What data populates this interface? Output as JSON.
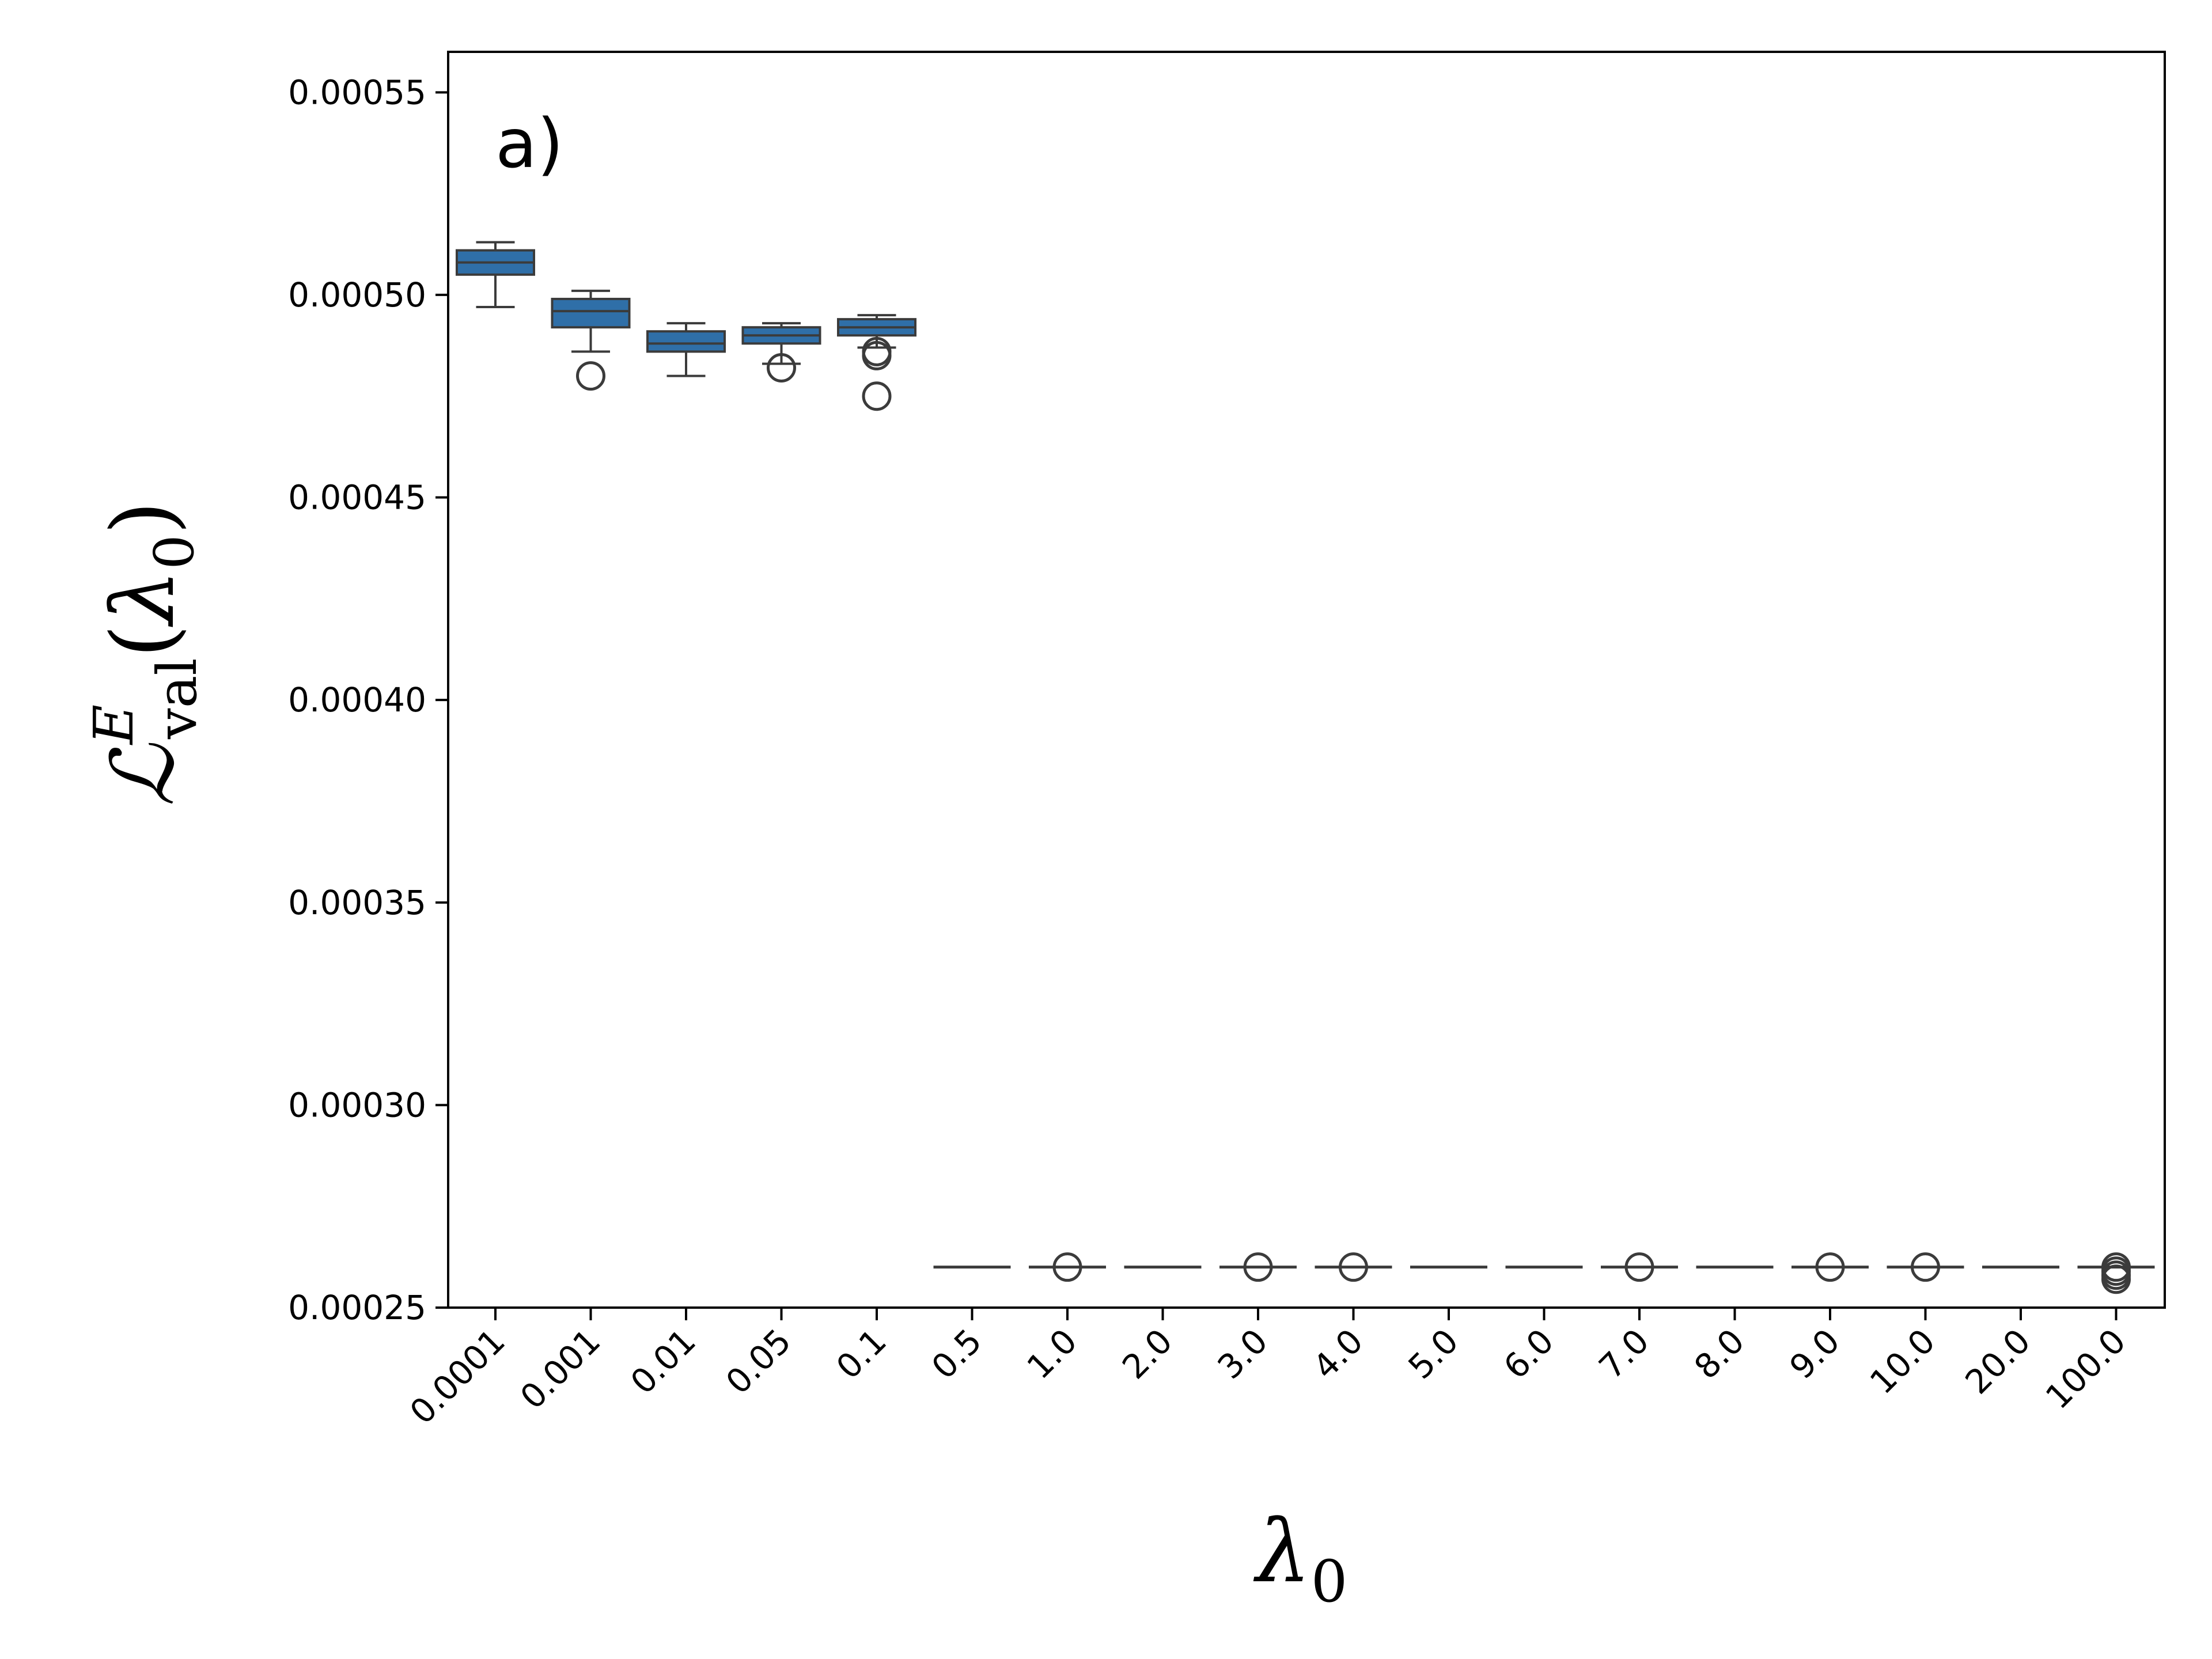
{
  "chart_data": {
    "type": "box",
    "panel_label": "a)",
    "xlabel": {
      "symbol": "λ",
      "subscript": "0"
    },
    "ylabel": {
      "symbol": "ℒ",
      "superscript": "E",
      "subscript": "val",
      "argument_open": "(",
      "argument_symbol": "λ",
      "argument_subscript": "0",
      "argument_close": ")"
    },
    "ylim": [
      0.00025,
      0.00056
    ],
    "y_ticks": [
      "0.00025",
      "0.00030",
      "0.00035",
      "0.00040",
      "0.00045",
      "0.00050",
      "0.00055"
    ],
    "grid": false,
    "box_color": "#2f6fa8",
    "line_color": "#3b3b3b",
    "categories": [
      "0.0001",
      "0.001",
      "0.01",
      "0.05",
      "0.1",
      "0.5",
      "1.0",
      "2.0",
      "3.0",
      "4.0",
      "5.0",
      "6.0",
      "7.0",
      "8.0",
      "9.0",
      "10.0",
      "20.0",
      "100.0"
    ],
    "boxes": [
      {
        "category": "0.0001",
        "whisker_low": 0.000497,
        "q1": 0.000505,
        "median": 0.000508,
        "q3": 0.000511,
        "whisker_high": 0.000513,
        "outliers": []
      },
      {
        "category": "0.001",
        "whisker_low": 0.000486,
        "q1": 0.000492,
        "median": 0.000496,
        "q3": 0.000499,
        "whisker_high": 0.000501,
        "outliers": [
          0.00048
        ]
      },
      {
        "category": "0.01",
        "whisker_low": 0.00048,
        "q1": 0.000486,
        "median": 0.000488,
        "q3": 0.000491,
        "whisker_high": 0.000493,
        "outliers": []
      },
      {
        "category": "0.05",
        "whisker_low": 0.000483,
        "q1": 0.000488,
        "median": 0.00049,
        "q3": 0.000492,
        "whisker_high": 0.000493,
        "outliers": [
          0.000482
        ]
      },
      {
        "category": "0.1",
        "whisker_low": 0.000487,
        "q1": 0.00049,
        "median": 0.000492,
        "q3": 0.000494,
        "whisker_high": 0.000495,
        "outliers": [
          0.000486,
          0.000485,
          0.000475
        ]
      },
      {
        "category": "0.5",
        "whisker_low": 0.00026,
        "q1": 0.00026,
        "median": 0.00026,
        "q3": 0.00026,
        "whisker_high": 0.00026,
        "outliers": []
      },
      {
        "category": "1.0",
        "whisker_low": 0.00026,
        "q1": 0.00026,
        "median": 0.00026,
        "q3": 0.00026,
        "whisker_high": 0.00026,
        "outliers": [
          0.00026
        ]
      },
      {
        "category": "2.0",
        "whisker_low": 0.00026,
        "q1": 0.00026,
        "median": 0.00026,
        "q3": 0.00026,
        "whisker_high": 0.00026,
        "outliers": []
      },
      {
        "category": "3.0",
        "whisker_low": 0.00026,
        "q1": 0.00026,
        "median": 0.00026,
        "q3": 0.00026,
        "whisker_high": 0.00026,
        "outliers": [
          0.00026
        ]
      },
      {
        "category": "4.0",
        "whisker_low": 0.00026,
        "q1": 0.00026,
        "median": 0.00026,
        "q3": 0.00026,
        "whisker_high": 0.00026,
        "outliers": [
          0.00026
        ]
      },
      {
        "category": "5.0",
        "whisker_low": 0.00026,
        "q1": 0.00026,
        "median": 0.00026,
        "q3": 0.00026,
        "whisker_high": 0.00026,
        "outliers": []
      },
      {
        "category": "6.0",
        "whisker_low": 0.00026,
        "q1": 0.00026,
        "median": 0.00026,
        "q3": 0.00026,
        "whisker_high": 0.00026,
        "outliers": []
      },
      {
        "category": "7.0",
        "whisker_low": 0.00026,
        "q1": 0.00026,
        "median": 0.00026,
        "q3": 0.00026,
        "whisker_high": 0.00026,
        "outliers": [
          0.00026
        ]
      },
      {
        "category": "8.0",
        "whisker_low": 0.00026,
        "q1": 0.00026,
        "median": 0.00026,
        "q3": 0.00026,
        "whisker_high": 0.00026,
        "outliers": []
      },
      {
        "category": "9.0",
        "whisker_low": 0.00026,
        "q1": 0.00026,
        "median": 0.00026,
        "q3": 0.00026,
        "whisker_high": 0.00026,
        "outliers": [
          0.00026
        ]
      },
      {
        "category": "10.0",
        "whisker_low": 0.00026,
        "q1": 0.00026,
        "median": 0.00026,
        "q3": 0.00026,
        "whisker_high": 0.00026,
        "outliers": [
          0.00026
        ]
      },
      {
        "category": "20.0",
        "whisker_low": 0.00026,
        "q1": 0.00026,
        "median": 0.00026,
        "q3": 0.00026,
        "whisker_high": 0.00026,
        "outliers": []
      },
      {
        "category": "100.0",
        "whisker_low": 0.00026,
        "q1": 0.00026,
        "median": 0.00026,
        "q3": 0.00026,
        "whisker_high": 0.00026,
        "outliers": [
          0.00026,
          0.000259,
          0.000258,
          0.000257
        ]
      }
    ]
  }
}
